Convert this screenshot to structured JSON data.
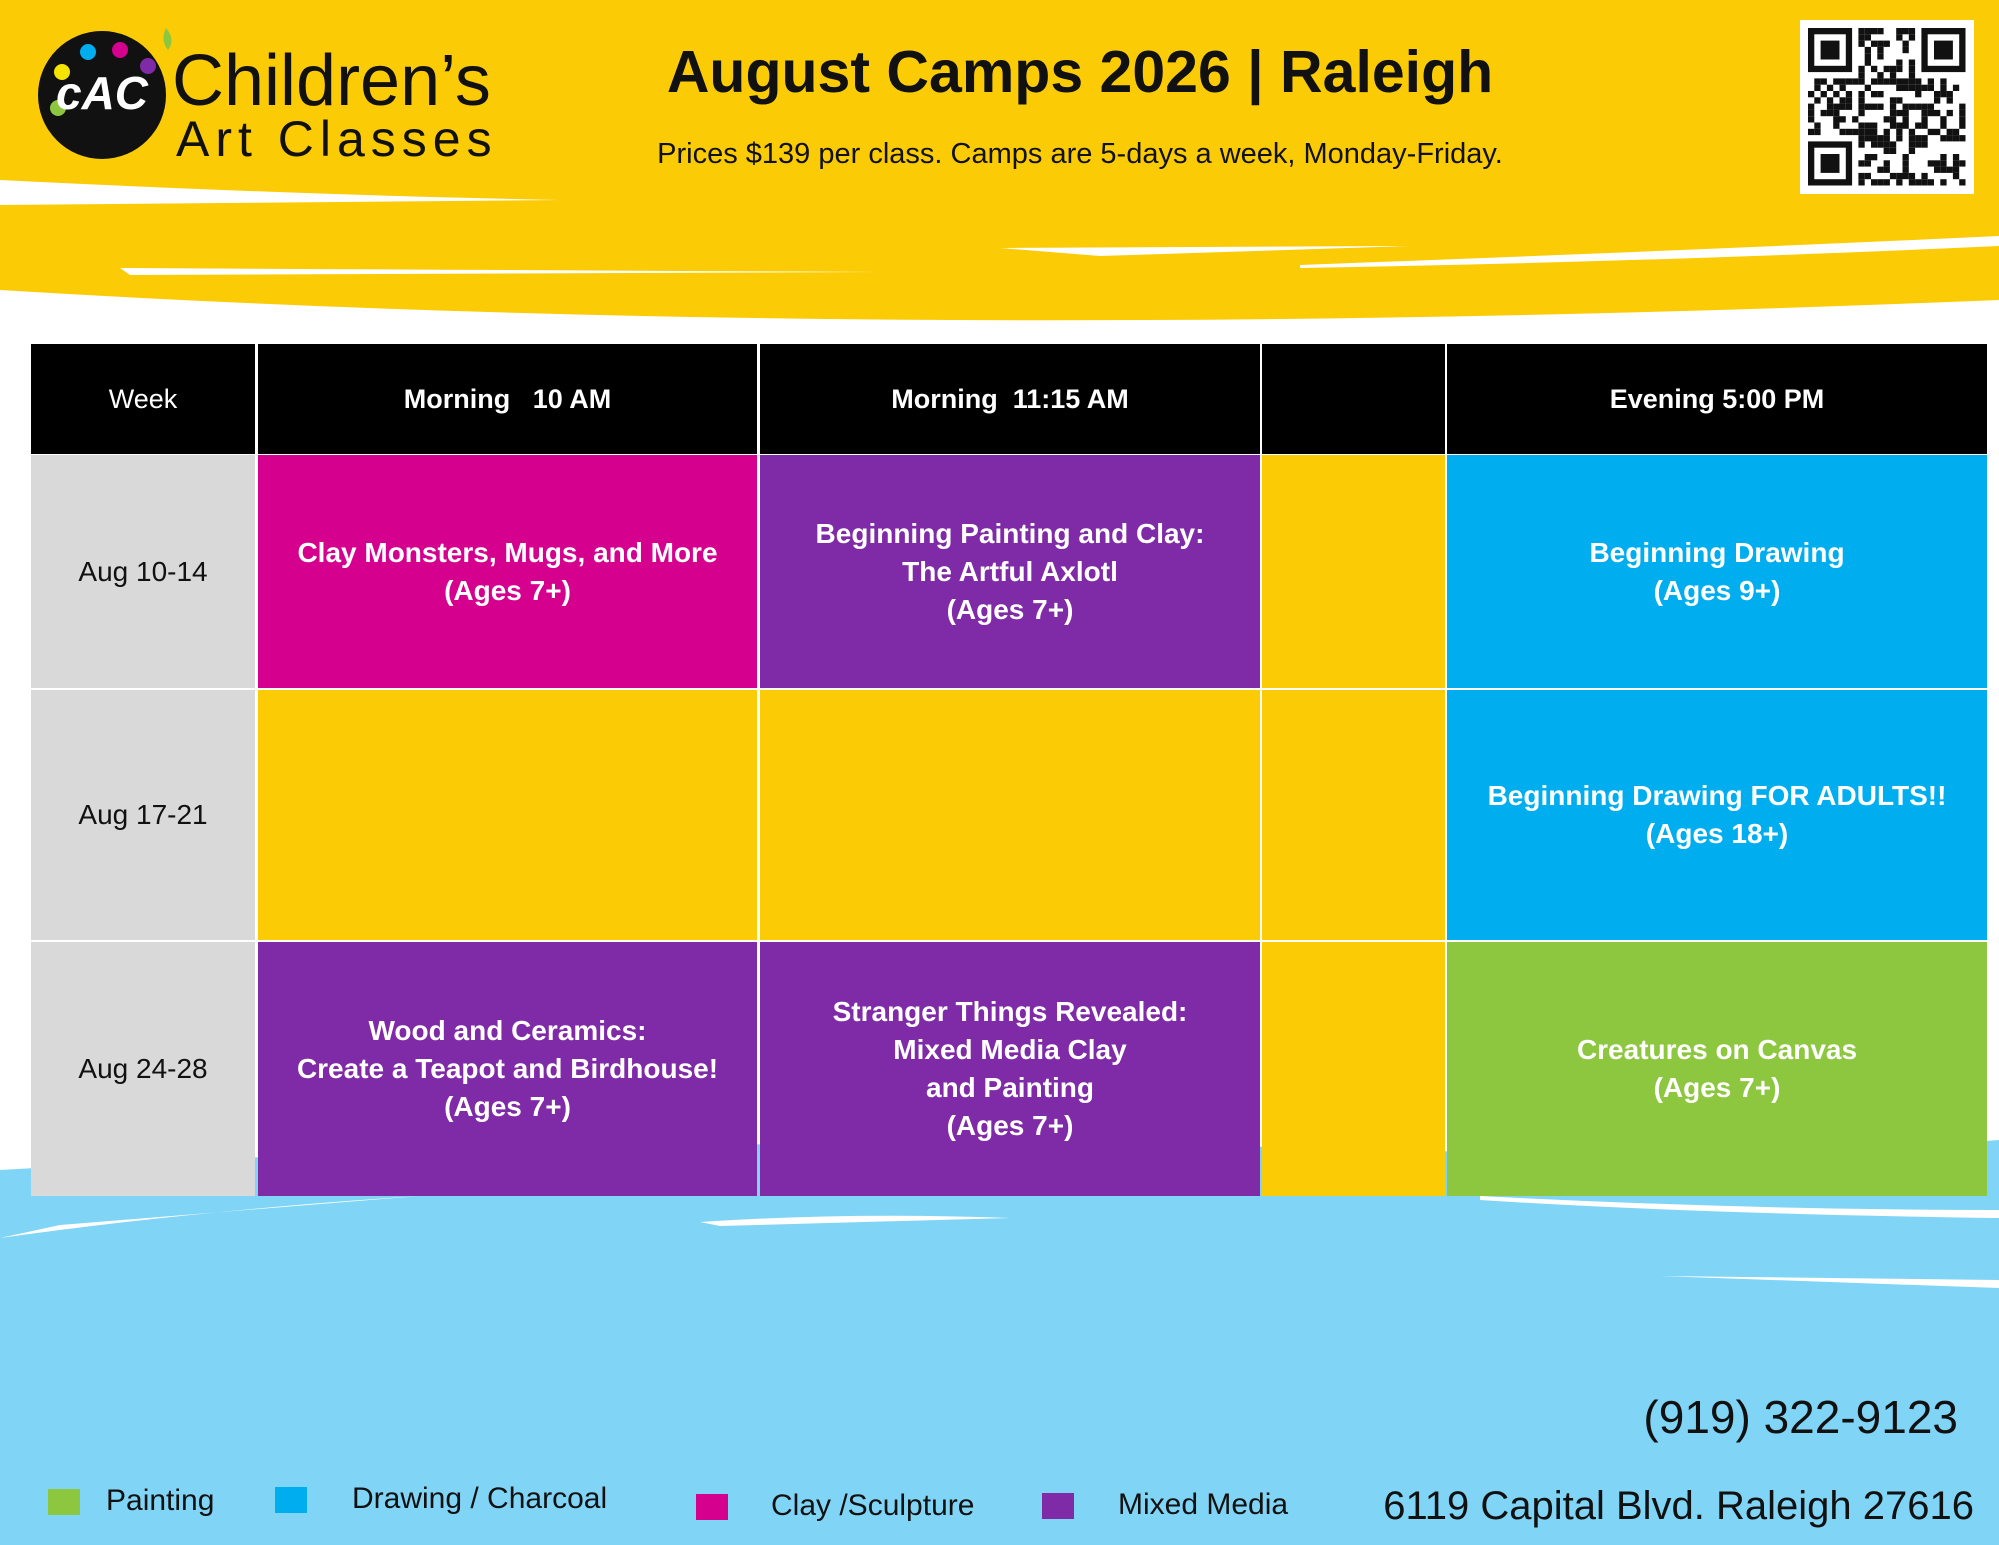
{
  "logo": {
    "mark": "cAC",
    "line1": "Children’s",
    "line2": "Art Classes"
  },
  "header": {
    "title": "August Camps 2026 | Raleigh",
    "subtitle": "Prices $139 per class. Camps are 5-days a week, Monday-Friday."
  },
  "table": {
    "headers": {
      "week": "Week",
      "morning_10am": "Morning   10 AM",
      "morning_1115am": "Morning  11:15 AM",
      "evening": "Evening 5:00 PM"
    },
    "rows": [
      {
        "week": "Aug 10-14",
        "morning_10am": {
          "lines": [
            "Clay Monsters, Mugs, and More",
            "(Ages 7+)"
          ],
          "color": "#d6008f"
        },
        "morning_1115am": {
          "lines": [
            "Beginning Painting and Clay:",
            "The Artful Axlotl",
            "(Ages 7+)"
          ],
          "color": "#7f2aa6"
        },
        "evening": {
          "lines": [
            "Beginning Drawing",
            "(Ages 9+)"
          ],
          "color": "#00aeef"
        }
      },
      {
        "week": "Aug 17-21",
        "evening": {
          "lines": [
            "Beginning Drawing FOR ADULTS!!",
            "(Ages 18+)"
          ],
          "color": "#00aeef"
        }
      },
      {
        "week": "Aug 24-28",
        "morning_10am": {
          "lines": [
            "Wood and Ceramics:",
            "Create a Teapot and Birdhouse!",
            "(Ages 7+)"
          ],
          "color": "#7f2aa6"
        },
        "morning_1115am": {
          "lines": [
            "Stranger Things Revealed:",
            "Mixed Media Clay",
            "and Painting",
            "(Ages 7+)"
          ],
          "color": "#7f2aa6"
        },
        "evening": {
          "lines": [
            "Creatures on Canvas",
            "(Ages 7+)"
          ],
          "color": "#8dc63f"
        }
      }
    ]
  },
  "legend": [
    {
      "label": "Painting",
      "color": "#8dc63f"
    },
    {
      "label": "Drawing / Charcoal",
      "color": "#00aeef"
    },
    {
      "label": "Clay /Sculpture",
      "color": "#d6008f"
    },
    {
      "label": "Mixed Media",
      "color": "#7f2aa6"
    }
  ],
  "contact": {
    "phone": "(919) 322-9123",
    "address": "6119 Capital Blvd. Raleigh 27616"
  }
}
